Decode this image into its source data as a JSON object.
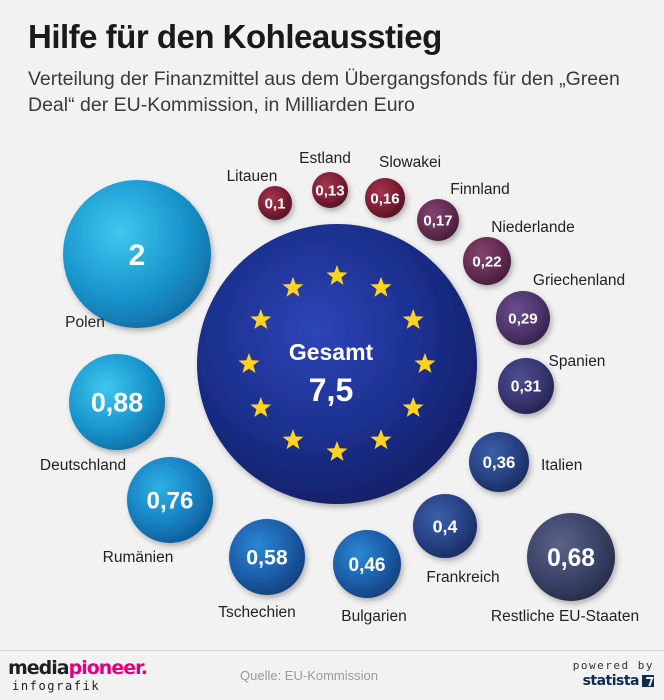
{
  "header": {
    "title": "Hilfe für den Kohleausstieg",
    "subtitle": "Verteilung der Finanzmittel aus dem Übergangsfonds für den „Green Deal“ der EU-Kommission, in Milliarden Euro"
  },
  "chart_data": {
    "type": "bubble",
    "unit": "Milliarden Euro",
    "total": {
      "label": "Gesamt",
      "value": 7.5,
      "display": "7,5"
    },
    "series": [
      {
        "name": "Polen",
        "value": 2,
        "display": "2"
      },
      {
        "name": "Deutschland",
        "value": 0.88,
        "display": "0,88"
      },
      {
        "name": "Rumänien",
        "value": 0.76,
        "display": "0,76"
      },
      {
        "name": "Tschechien",
        "value": 0.58,
        "display": "0,58"
      },
      {
        "name": "Bulgarien",
        "value": 0.46,
        "display": "0,46"
      },
      {
        "name": "Frankreich",
        "value": 0.4,
        "display": "0,4"
      },
      {
        "name": "Restliche EU-Staaten",
        "value": 0.68,
        "display": "0,68"
      },
      {
        "name": "Italien",
        "value": 0.36,
        "display": "0,36"
      },
      {
        "name": "Spanien",
        "value": 0.31,
        "display": "0,31"
      },
      {
        "name": "Griechenland",
        "value": 0.29,
        "display": "0,29"
      },
      {
        "name": "Niederlande",
        "value": 0.22,
        "display": "0,22"
      },
      {
        "name": "Finnland",
        "value": 0.17,
        "display": "0,17"
      },
      {
        "name": "Slowakei",
        "value": 0.16,
        "display": "0,16"
      },
      {
        "name": "Estland",
        "value": 0.13,
        "display": "0,13"
      },
      {
        "name": "Litauen",
        "value": 0.1,
        "display": "0,1"
      }
    ]
  },
  "colors": {
    "background": "#f2f2f2",
    "eu_blue": "#1b2f8c",
    "eu_star": "#ffd320",
    "brand_accent": "#e4007d",
    "statista_navy": "#0b2a54"
  },
  "footer": {
    "source": "Quelle: EU-Kommission",
    "brand_media": "media",
    "brand_pioneer": "pioneer",
    "brand_dot": ".",
    "brand_sub": "infografik",
    "powered_by": "powered by",
    "statista": "statista"
  }
}
